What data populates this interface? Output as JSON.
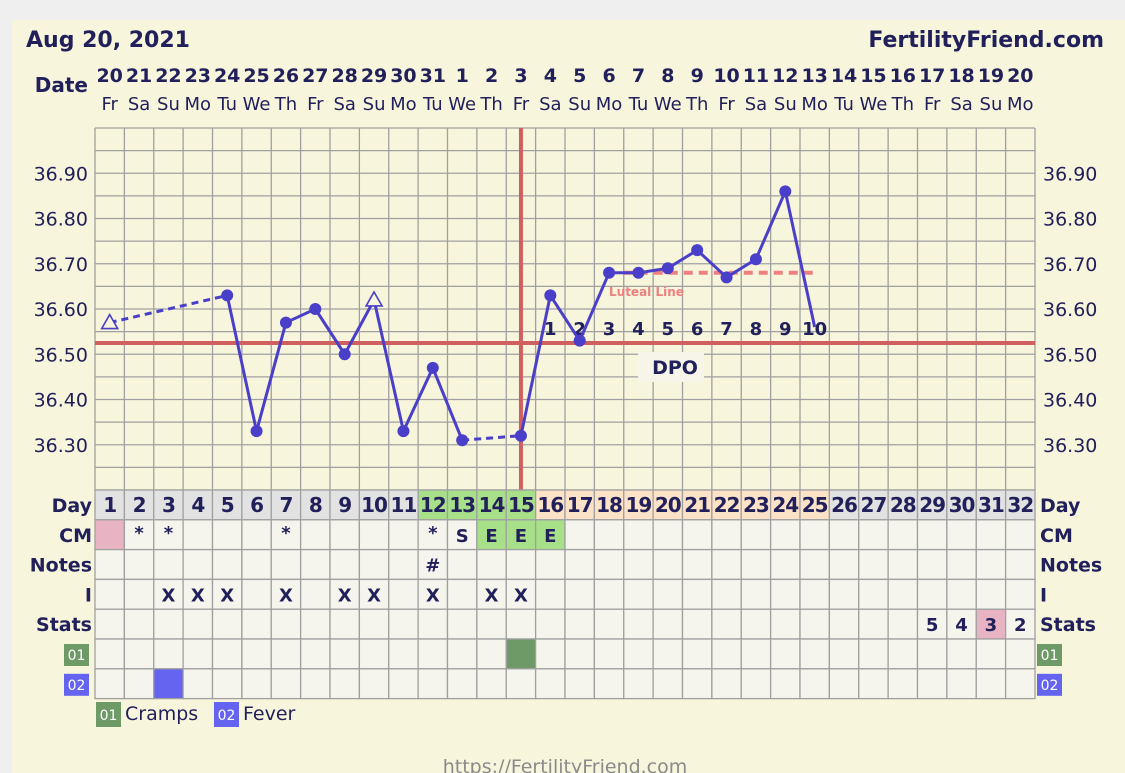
{
  "header": {
    "date_title": "Aug 20, 2021",
    "site": "FertilityFriend.com",
    "date_label": "Date"
  },
  "footer": {
    "url": "https://FertilityFriend.com"
  },
  "chart_data": {
    "type": "line",
    "ylim": [
      36.2,
      37.0
    ],
    "y_ticks": [
      "36.90",
      "36.80",
      "36.70",
      "36.60",
      "36.50",
      "36.40",
      "36.30"
    ],
    "dates": [
      "20",
      "21",
      "22",
      "23",
      "24",
      "25",
      "26",
      "27",
      "28",
      "29",
      "30",
      "31",
      "1",
      "2",
      "3",
      "4",
      "5",
      "6",
      "7",
      "8",
      "9",
      "10",
      "11",
      "12",
      "13",
      "14",
      "15",
      "16",
      "17",
      "18",
      "19",
      "20"
    ],
    "weekdays": [
      "Fr",
      "Sa",
      "Su",
      "Mo",
      "Tu",
      "We",
      "Th",
      "Fr",
      "Sa",
      "Su",
      "Mo",
      "Tu",
      "We",
      "Th",
      "Fr",
      "Sa",
      "Su",
      "Mo",
      "Tu",
      "We",
      "Th",
      "Fr",
      "Sa",
      "Su",
      "Mo",
      "Tu",
      "We",
      "Th",
      "Fr",
      "Sa",
      "Su",
      "Mo"
    ],
    "temps": [
      {
        "day": 1,
        "temp": 36.57,
        "marker": "open-triangle"
      },
      {
        "day": 5,
        "temp": 36.63,
        "dashed_from_prev": true
      },
      {
        "day": 6,
        "temp": 36.33
      },
      {
        "day": 7,
        "temp": 36.57
      },
      {
        "day": 8,
        "temp": 36.6
      },
      {
        "day": 9,
        "temp": 36.5
      },
      {
        "day": 10,
        "temp": 36.62,
        "marker": "open-triangle"
      },
      {
        "day": 11,
        "temp": 36.33
      },
      {
        "day": 12,
        "temp": 36.47
      },
      {
        "day": 13,
        "temp": 36.31
      },
      {
        "day": 15,
        "temp": 36.32,
        "dashed_from_prev": true
      },
      {
        "day": 16,
        "temp": 36.63
      },
      {
        "day": 17,
        "temp": 36.53
      },
      {
        "day": 18,
        "temp": 36.68
      },
      {
        "day": 19,
        "temp": 36.68
      },
      {
        "day": 20,
        "temp": 36.69
      },
      {
        "day": 21,
        "temp": 36.73
      },
      {
        "day": 22,
        "temp": 36.67
      },
      {
        "day": 23,
        "temp": 36.71
      },
      {
        "day": 24,
        "temp": 36.86
      },
      {
        "day": 25,
        "temp": 36.56,
        "marker": "none"
      }
    ],
    "coverline": 36.525,
    "ovulation_day": 15,
    "luteal_line": {
      "label": "Luteal Line",
      "temp": 36.68,
      "from_day": 18.5,
      "to_day": 25
    },
    "dpo": {
      "label": "DPO",
      "start_day": 16,
      "values": [
        "1",
        "2",
        "3",
        "4",
        "5",
        "6",
        "7",
        "8",
        "9",
        "10"
      ]
    },
    "line_color": "#4a3fc8",
    "coverline_color": "#d06060",
    "luteal_color": "#f08080"
  },
  "table": {
    "row_labels": [
      "Day",
      "CM",
      "Notes",
      "I",
      "Stats",
      "01",
      "02"
    ],
    "days": 32,
    "day_colors": {
      "fertile": [
        12,
        13,
        14,
        15
      ],
      "luteal": [
        16,
        17,
        18,
        19,
        20,
        21,
        22,
        23,
        24,
        25
      ]
    },
    "cm": {
      "1": "",
      "2": "*",
      "3": "*",
      "7": "*",
      "12": "*",
      "13": "S",
      "14": "E",
      "15": "E",
      "16": "E"
    },
    "cm_colors": {
      "1": "#e8b4c4",
      "14": "#a8e08a",
      "15": "#a8e08a",
      "16": "#a8e08a"
    },
    "notes": {
      "12": "#"
    },
    "intercourse": {
      "3": "X",
      "4": "X",
      "5": "X",
      "7": "X",
      "9": "X",
      "10": "X",
      "12": "X",
      "14": "X",
      "15": "X"
    },
    "stats": {
      "29": "5",
      "30": "4",
      "31": "3",
      "32": "2"
    },
    "stats_highlight": {
      "31": "#e8b4c4"
    },
    "symptom_01": [
      15
    ],
    "symptom_02": [
      3
    ]
  },
  "legend": [
    {
      "code": "01",
      "label": "Cramps",
      "color": "#6d9a66"
    },
    {
      "code": "02",
      "label": "Fever",
      "color": "#6464f0"
    }
  ],
  "colors": {
    "background": "#f7f5dc",
    "text": "#22205a",
    "grid": "#a0a0a0",
    "cell": "#f5f5ee",
    "day_gray": "#e2e2e2",
    "day_fertile": "#a8e08a",
    "day_luteal": "#fce3c8"
  }
}
